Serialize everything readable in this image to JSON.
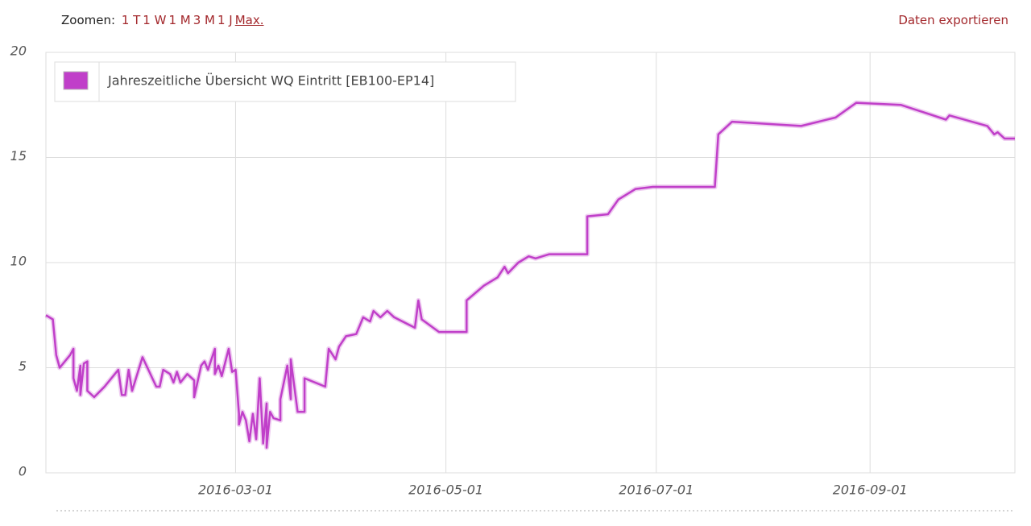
{
  "toolbar": {
    "zoom_label": "Zoomen:",
    "zoom_options": [
      "1 T",
      "1 W",
      "1 M",
      "3 M",
      "1 J",
      "Max."
    ],
    "export": "Daten exportieren"
  },
  "chart_data": {
    "type": "line",
    "x": [
      "2016-01-06",
      "2016-01-08",
      "2016-01-09",
      "2016-01-10",
      "2016-01-13",
      "2016-01-14",
      "2016-01-14",
      "2016-01-15",
      "2016-01-16",
      "2016-01-16",
      "2016-01-17",
      "2016-01-18",
      "2016-01-18",
      "2016-01-20",
      "2016-01-23",
      "2016-01-27",
      "2016-01-28",
      "2016-01-29",
      "2016-01-30",
      "2016-01-31",
      "2016-02-03",
      "2016-02-07",
      "2016-02-08",
      "2016-02-09",
      "2016-02-11",
      "2016-02-12",
      "2016-02-13",
      "2016-02-14",
      "2016-02-16",
      "2016-02-18",
      "2016-02-18",
      "2016-02-20",
      "2016-02-21",
      "2016-02-22",
      "2016-02-24",
      "2016-02-24",
      "2016-02-25",
      "2016-02-26",
      "2016-02-28",
      "2016-02-29",
      "2016-03-01",
      "2016-03-02",
      "2016-03-02",
      "2016-03-03",
      "2016-03-04",
      "2016-03-05",
      "2016-03-06",
      "2016-03-07",
      "2016-03-08",
      "2016-03-09",
      "2016-03-10",
      "2016-03-10",
      "2016-03-11",
      "2016-03-12",
      "2016-03-14",
      "2016-03-14",
      "2016-03-16",
      "2016-03-17",
      "2016-03-17",
      "2016-03-19",
      "2016-03-21",
      "2016-03-21",
      "2016-03-27",
      "2016-03-28",
      "2016-03-30",
      "2016-03-31",
      "2016-04-02",
      "2016-04-05",
      "2016-04-07",
      "2016-04-09",
      "2016-04-10",
      "2016-04-12",
      "2016-04-14",
      "2016-04-16",
      "2016-04-22",
      "2016-04-23",
      "2016-04-24",
      "2016-04-29",
      "2016-05-07",
      "2016-05-07",
      "2016-05-12",
      "2016-05-16",
      "2016-05-18",
      "2016-05-19",
      "2016-05-22",
      "2016-05-25",
      "2016-05-27",
      "2016-05-31",
      "2016-06-11",
      "2016-06-11",
      "2016-06-17",
      "2016-06-20",
      "2016-06-25",
      "2016-06-30",
      "2016-07-18",
      "2016-07-19",
      "2016-07-23",
      "2016-08-12",
      "2016-08-22",
      "2016-08-28",
      "2016-09-10",
      "2016-09-23",
      "2016-09-24",
      "2016-10-05",
      "2016-10-07",
      "2016-10-08",
      "2016-10-10",
      "2016-10-13"
    ],
    "series": [
      {
        "name": "Jahreszeitliche Übersicht WQ Eintritt [EB100-EP14]",
        "color": "#c03fc9",
        "values": [
          7.5,
          7.3,
          5.6,
          5.0,
          5.6,
          5.9,
          4.5,
          3.9,
          5.1,
          3.7,
          5.2,
          5.3,
          3.9,
          3.6,
          4.1,
          4.9,
          3.7,
          3.7,
          4.9,
          3.9,
          5.5,
          4.1,
          4.1,
          4.9,
          4.7,
          4.3,
          4.8,
          4.3,
          4.7,
          4.4,
          3.6,
          5.1,
          5.3,
          4.9,
          5.9,
          4.7,
          5.1,
          4.6,
          5.9,
          4.8,
          4.9,
          2.8,
          2.3,
          2.9,
          2.5,
          1.5,
          2.8,
          1.6,
          4.5,
          1.4,
          3.3,
          1.2,
          2.9,
          2.6,
          2.5,
          3.5,
          5.1,
          3.5,
          5.4,
          2.9,
          2.9,
          4.5,
          4.1,
          5.9,
          5.4,
          6.0,
          6.5,
          6.6,
          7.4,
          7.2,
          7.7,
          7.4,
          7.7,
          7.4,
          6.9,
          8.2,
          7.3,
          6.7,
          6.7,
          8.2,
          8.9,
          9.3,
          9.8,
          9.5,
          10.0,
          10.3,
          10.2,
          10.4,
          10.4,
          12.2,
          12.3,
          13.0,
          13.5,
          13.6,
          13.6,
          16.1,
          16.7,
          16.5,
          16.9,
          17.6,
          17.5,
          16.8,
          17.0,
          16.5,
          16.1,
          16.2,
          15.9,
          15.9
        ]
      }
    ],
    "xlim": [
      "2016-01-06",
      "2016-10-13"
    ],
    "xticks": [
      "2016-03-01",
      "2016-05-01",
      "2016-07-01",
      "2016-09-01"
    ],
    "ylim": [
      0,
      20
    ],
    "yticks": [
      0,
      5,
      10,
      15,
      20
    ],
    "grid": true
  }
}
